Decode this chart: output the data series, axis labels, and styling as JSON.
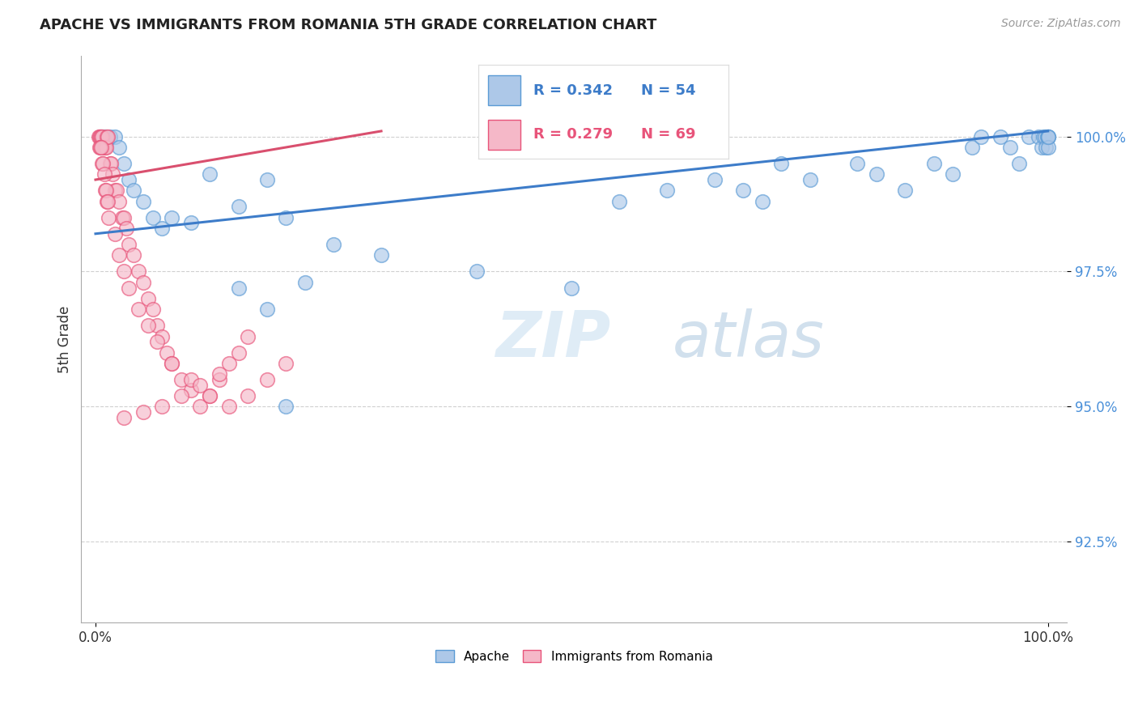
{
  "title": "APACHE VS IMMIGRANTS FROM ROMANIA 5TH GRADE CORRELATION CHART",
  "source": "Source: ZipAtlas.com",
  "ylabel": "5th Grade",
  "xlim": [
    0.0,
    100.0
  ],
  "ylim": [
    91.0,
    101.5
  ],
  "yticks": [
    92.5,
    95.0,
    97.5,
    100.0
  ],
  "ytick_labels": [
    "92.5%",
    "95.0%",
    "97.5%",
    "100.0%"
  ],
  "xtick_labels": [
    "0.0%",
    "100.0%"
  ],
  "legend_r_apache": "R = 0.342",
  "legend_n_apache": "N = 54",
  "legend_r_romania": "R = 0.279",
  "legend_n_romania": "N = 69",
  "legend_label_apache": "Apache",
  "legend_label_romania": "Immigrants from Romania",
  "apache_color": "#adc8e8",
  "romania_color": "#f5b8c8",
  "apache_edge_color": "#5b9bd5",
  "romania_edge_color": "#e8547a",
  "apache_line_color": "#3d7cc9",
  "romania_line_color": "#d94f6e",
  "watermark_color": "#cfe0f0",
  "background_color": "#ffffff",
  "grid_color": "#d0d0d0",
  "ytick_color": "#4a90d9",
  "apache_trend_x0": 0,
  "apache_trend_x1": 100,
  "apache_trend_y0": 98.2,
  "apache_trend_y1": 100.1,
  "romania_trend_x0": 0,
  "romania_trend_x1": 30,
  "romania_trend_y0": 99.2,
  "romania_trend_y1": 100.1,
  "apache_scatter_x": [
    0.5,
    0.7,
    1.0,
    1.5,
    2.0,
    2.5,
    3.0,
    3.5,
    4.0,
    5.0,
    6.0,
    7.0,
    8.0,
    10.0,
    12.0,
    15.0,
    18.0,
    20.0,
    25.0,
    30.0,
    40.0,
    50.0,
    55.0,
    60.0,
    65.0,
    68.0,
    70.0,
    72.0,
    75.0,
    80.0,
    82.0,
    85.0,
    88.0,
    90.0,
    92.0,
    93.0,
    95.0,
    96.0,
    97.0,
    98.0,
    99.0,
    99.3,
    99.5,
    99.7,
    99.8,
    99.9,
    100.0,
    100.0,
    100.0,
    100.0,
    20.0,
    15.0,
    18.0,
    22.0
  ],
  "apache_scatter_y": [
    100.0,
    100.0,
    100.0,
    100.0,
    100.0,
    99.8,
    99.5,
    99.2,
    99.0,
    98.8,
    98.5,
    98.3,
    98.5,
    98.4,
    99.3,
    98.7,
    99.2,
    98.5,
    98.0,
    97.8,
    97.5,
    97.2,
    98.8,
    99.0,
    99.2,
    99.0,
    98.8,
    99.5,
    99.2,
    99.5,
    99.3,
    99.0,
    99.5,
    99.3,
    99.8,
    100.0,
    100.0,
    99.8,
    99.5,
    100.0,
    100.0,
    99.8,
    100.0,
    100.0,
    99.8,
    100.0,
    100.0,
    100.0,
    99.8,
    100.0,
    95.0,
    97.2,
    96.8,
    97.3
  ],
  "romania_scatter_x": [
    0.3,
    0.4,
    0.5,
    0.6,
    0.7,
    0.8,
    0.9,
    1.0,
    1.1,
    1.2,
    1.3,
    1.5,
    1.6,
    1.8,
    2.0,
    2.2,
    2.5,
    2.8,
    3.0,
    3.2,
    3.5,
    4.0,
    4.5,
    5.0,
    5.5,
    6.0,
    6.5,
    7.0,
    7.5,
    8.0,
    9.0,
    10.0,
    11.0,
    12.0,
    13.0,
    14.0,
    15.0,
    16.0,
    0.4,
    0.5,
    0.6,
    0.7,
    0.8,
    0.9,
    1.0,
    1.1,
    1.2,
    1.3,
    1.4,
    2.0,
    2.5,
    3.0,
    3.5,
    4.5,
    5.5,
    6.5,
    8.0,
    10.0,
    12.0,
    14.0,
    16.0,
    18.0,
    20.0,
    3.0,
    5.0,
    7.0,
    9.0,
    11.0,
    13.0
  ],
  "romania_scatter_y": [
    100.0,
    100.0,
    100.0,
    100.0,
    100.0,
    99.8,
    99.8,
    99.8,
    99.8,
    100.0,
    100.0,
    99.5,
    99.5,
    99.3,
    99.0,
    99.0,
    98.8,
    98.5,
    98.5,
    98.3,
    98.0,
    97.8,
    97.5,
    97.3,
    97.0,
    96.8,
    96.5,
    96.3,
    96.0,
    95.8,
    95.5,
    95.3,
    95.0,
    95.2,
    95.5,
    95.8,
    96.0,
    96.3,
    99.8,
    99.8,
    99.8,
    99.5,
    99.5,
    99.3,
    99.0,
    99.0,
    98.8,
    98.8,
    98.5,
    98.2,
    97.8,
    97.5,
    97.2,
    96.8,
    96.5,
    96.2,
    95.8,
    95.5,
    95.2,
    95.0,
    95.2,
    95.5,
    95.8,
    94.8,
    94.9,
    95.0,
    95.2,
    95.4,
    95.6
  ]
}
